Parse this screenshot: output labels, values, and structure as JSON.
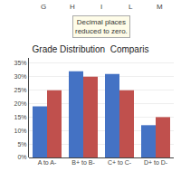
{
  "chart_data": {
    "type": "bar",
    "title": "Grade Distribution  Comparis",
    "categories": [
      "A to A-",
      "B+ to B-",
      "C+ to C-",
      "D+ to D-"
    ],
    "series": [
      {
        "color": "#4472C4",
        "values": [
          19,
          32,
          31,
          12
        ]
      },
      {
        "color": "#C0504D",
        "values": [
          25,
          30,
          25,
          15
        ]
      }
    ],
    "ylim": [
      0,
      37
    ],
    "yticks": [
      {
        "value": 0,
        "label": "0%"
      },
      {
        "value": 5,
        "label": "5%"
      },
      {
        "value": 10,
        "label": "10%"
      },
      {
        "value": 15,
        "label": "15%"
      },
      {
        "value": 20,
        "label": "20%"
      },
      {
        "value": 25,
        "label": "25%"
      },
      {
        "value": 30,
        "label": "30%"
      },
      {
        "value": 35,
        "label": "35%"
      }
    ],
    "grid": true,
    "annotations": [
      "G",
      "H",
      "I",
      "L",
      "M",
      "Decimal places\nreduced to zero."
    ]
  }
}
